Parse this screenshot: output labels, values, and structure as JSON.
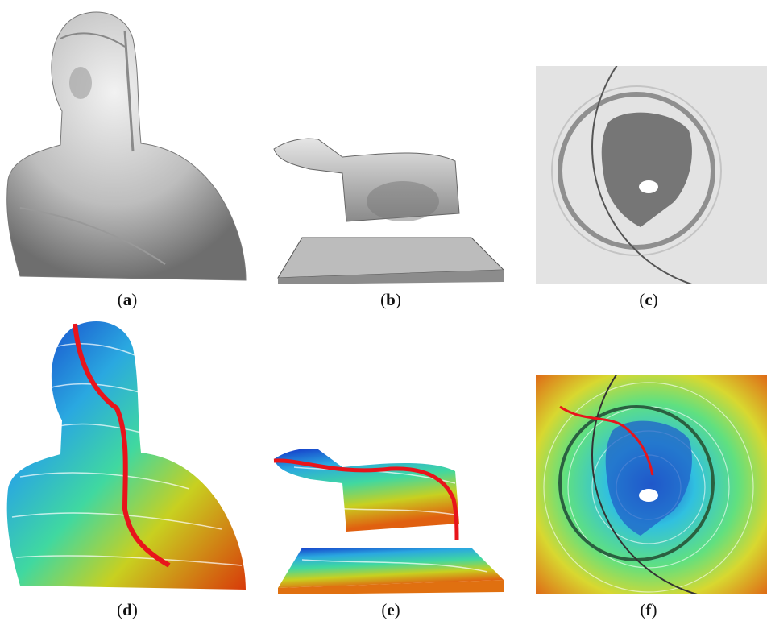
{
  "figure": {
    "panels": [
      {
        "id": "a",
        "caption_letter": "a",
        "subject": "bust-grayscale"
      },
      {
        "id": "b",
        "caption_letter": "b",
        "subject": "wolf-statue-grayscale"
      },
      {
        "id": "c",
        "caption_letter": "c",
        "subject": "coin-relief-grayscale"
      },
      {
        "id": "d",
        "caption_letter": "d",
        "subject": "bust-geodesic-colormap"
      },
      {
        "id": "e",
        "caption_letter": "e",
        "subject": "wolf-statue-geodesic-colormap"
      },
      {
        "id": "f",
        "caption_letter": "f",
        "subject": "coin-relief-geodesic-colormap"
      }
    ],
    "caption_open": "(",
    "caption_close": ")",
    "colors": {
      "path": "#e8141b",
      "mesh_gray": "#a9a9a9",
      "background": "#ffffff"
    }
  }
}
